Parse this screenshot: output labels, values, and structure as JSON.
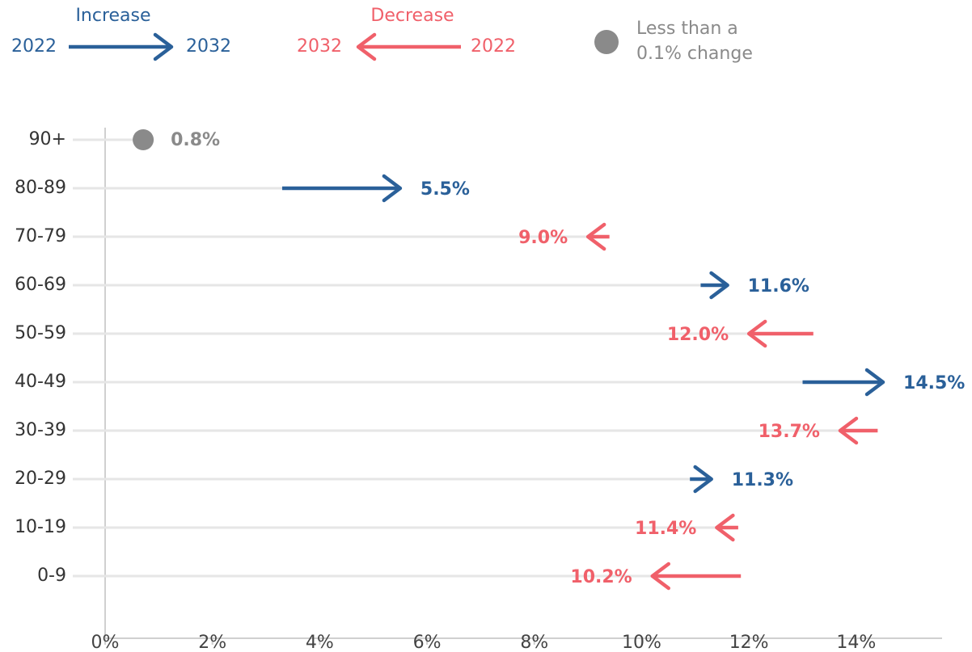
{
  "chart_data": {
    "type": "arrow",
    "legend": {
      "increase": "Increase",
      "decrease": "Decrease",
      "same_lines": [
        "Less than a",
        "0.1% change"
      ]
    },
    "categories": [
      "90+",
      "80-89",
      "70-79",
      "60-69",
      "50-59",
      "40-49",
      "30-39",
      "20-29",
      "10-19",
      "0-9"
    ],
    "series": [
      {
        "name": "2022",
        "values": [
          0.8,
          3.3,
          9.4,
          11.1,
          13.2,
          13.0,
          14.4,
          10.9,
          11.8,
          11.85
        ]
      },
      {
        "name": "2032",
        "values": [
          0.8,
          5.5,
          9.0,
          11.6,
          12.0,
          14.5,
          13.7,
          11.3,
          11.4,
          10.2
        ],
        "value_labels": [
          "0.8%",
          "5.5%",
          "9.0%",
          "11.6%",
          "12.0%",
          "14.5%",
          "13.7%",
          "11.3%",
          "11.4%",
          "10.2%"
        ]
      }
    ],
    "colors": {
      "increase": "#2a6099",
      "decrease": "#f0606a",
      "same": "#8a8a8a"
    },
    "xlim": [
      0,
      15.6
    ],
    "xticks": [
      {
        "value": 0,
        "label": "0%"
      },
      {
        "value": 2,
        "label": "2%"
      },
      {
        "value": 4,
        "label": "4%"
      },
      {
        "value": 6,
        "label": "6%"
      },
      {
        "value": 8,
        "label": "8%"
      },
      {
        "value": 10,
        "label": "10%"
      },
      {
        "value": 12,
        "label": "12%"
      },
      {
        "value": 14,
        "label": "14%"
      }
    ]
  }
}
